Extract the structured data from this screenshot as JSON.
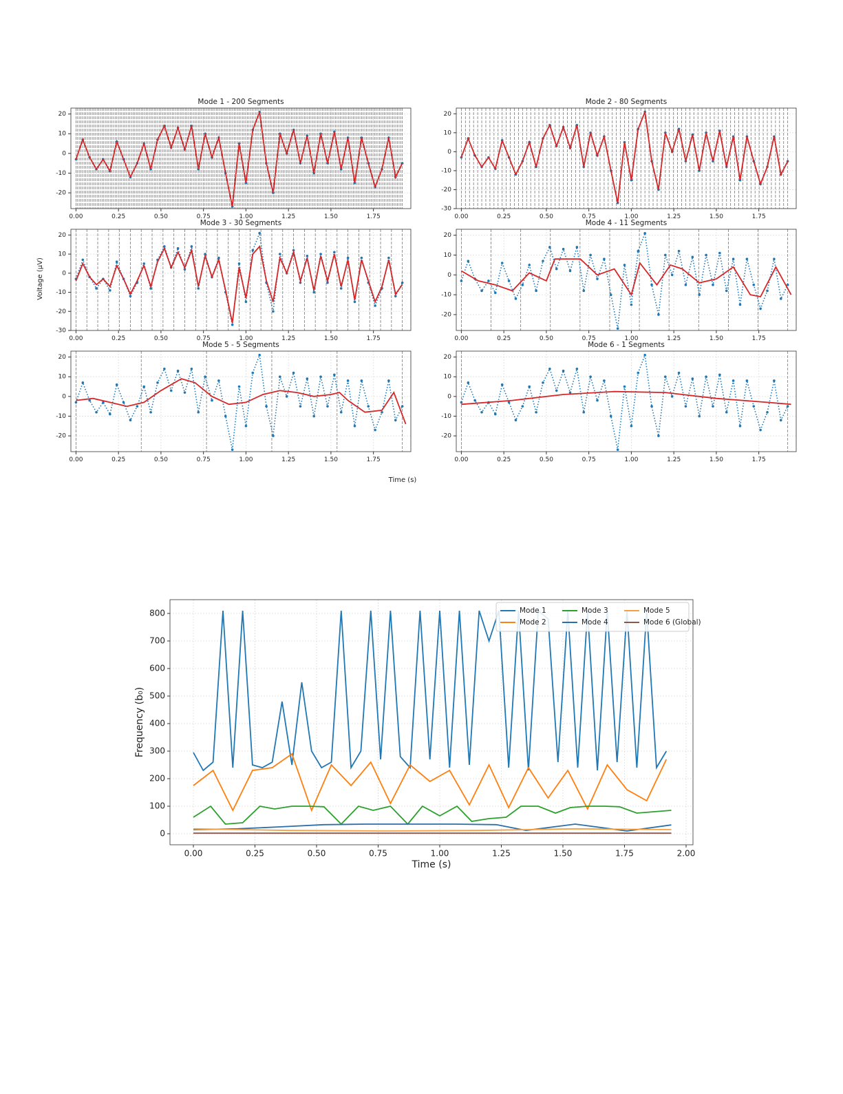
{
  "chart_data": [
    {
      "type": "segmented",
      "ylabel": "Voltage (μV)",
      "xlabel": "Time (s)",
      "x": [
        0,
        0.04,
        0.08,
        0.12,
        0.16,
        0.2,
        0.24,
        0.28,
        0.32,
        0.36,
        0.4,
        0.44,
        0.48,
        0.52,
        0.56,
        0.6,
        0.64,
        0.68,
        0.72,
        0.76,
        0.8,
        0.84,
        0.88,
        0.92,
        0.96,
        1.0,
        1.04,
        1.08,
        1.12,
        1.16,
        1.2,
        1.24,
        1.28,
        1.32,
        1.36,
        1.4,
        1.44,
        1.48,
        1.52,
        1.56,
        1.6,
        1.64,
        1.68,
        1.72,
        1.76,
        1.8,
        1.84,
        1.88,
        1.92
      ],
      "signal": [
        -3,
        7,
        -2,
        -8,
        -3,
        -9,
        6,
        -3,
        -12,
        -5,
        5,
        -8,
        7,
        14,
        3,
        13,
        2,
        14,
        -8,
        10,
        -2,
        8,
        -10,
        -27,
        5,
        -15,
        12,
        21,
        -5,
        -20,
        10,
        0,
        12,
        -5,
        9,
        -10,
        10,
        -5,
        11,
        -8,
        8,
        -15,
        8,
        -5,
        -17,
        -8,
        8,
        -12,
        -5
      ],
      "signal_color": "#1f77b4",
      "fit_color": "#d62728",
      "grid": true,
      "xlim": [
        -0.03,
        1.97
      ],
      "xticks": [
        {
          "value": 0,
          "label": "0.00"
        },
        {
          "value": 0.25,
          "label": "0.25"
        },
        {
          "value": 0.5,
          "label": "0.50"
        },
        {
          "value": 0.75,
          "label": "0.75"
        },
        {
          "value": 1,
          "label": "1.00"
        },
        {
          "value": 1.25,
          "label": "1.25"
        },
        {
          "value": 1.5,
          "label": "1.50"
        },
        {
          "value": 1.75,
          "label": "1.75"
        }
      ],
      "panels": [
        {
          "title": "Mode 1 - 200 Segments",
          "segments": 200,
          "ylim": [
            -28,
            23
          ],
          "yticks": [
            -20,
            -10,
            0,
            10,
            20
          ],
          "fit_x": [
            0,
            0.04,
            0.08,
            0.12,
            0.16,
            0.2,
            0.24,
            0.28,
            0.32,
            0.36,
            0.4,
            0.44,
            0.48,
            0.52,
            0.56,
            0.6,
            0.64,
            0.68,
            0.72,
            0.76,
            0.8,
            0.84,
            0.88,
            0.92,
            0.96,
            1.0,
            1.04,
            1.08,
            1.12,
            1.16,
            1.2,
            1.24,
            1.28,
            1.32,
            1.36,
            1.4,
            1.44,
            1.48,
            1.52,
            1.56,
            1.6,
            1.64,
            1.68,
            1.72,
            1.76,
            1.8,
            1.84,
            1.88,
            1.92
          ],
          "fit": [
            -3,
            7,
            -2,
            -8,
            -3,
            -9,
            6,
            -3,
            -12,
            -5,
            5,
            -8,
            7,
            14,
            3,
            13,
            2,
            14,
            -8,
            10,
            -2,
            8,
            -10,
            -27,
            5,
            -15,
            12,
            21,
            -5,
            -20,
            10,
            0,
            12,
            -5,
            9,
            -10,
            10,
            -5,
            11,
            -8,
            8,
            -15,
            8,
            -5,
            -17,
            -8,
            8,
            -12,
            -5
          ]
        },
        {
          "title": "Mode 2 - 80 Segments",
          "segments": 80,
          "ylim": [
            -30,
            23
          ],
          "yticks": [
            -30,
            -20,
            -10,
            0,
            10,
            20
          ],
          "fit_x": [
            0,
            0.04,
            0.08,
            0.12,
            0.16,
            0.2,
            0.24,
            0.28,
            0.32,
            0.36,
            0.4,
            0.44,
            0.48,
            0.52,
            0.56,
            0.6,
            0.64,
            0.68,
            0.72,
            0.76,
            0.8,
            0.84,
            0.88,
            0.92,
            0.96,
            1.0,
            1.04,
            1.08,
            1.12,
            1.16,
            1.2,
            1.24,
            1.28,
            1.32,
            1.36,
            1.4,
            1.44,
            1.48,
            1.52,
            1.56,
            1.6,
            1.64,
            1.68,
            1.72,
            1.76,
            1.8,
            1.84,
            1.88,
            1.92
          ],
          "fit": [
            -3,
            7,
            -2,
            -8,
            -3,
            -9,
            6,
            -3,
            -12,
            -5,
            5,
            -8,
            7,
            14,
            3,
            13,
            2,
            14,
            -8,
            10,
            -2,
            8,
            -10,
            -27,
            5,
            -15,
            12,
            21,
            -5,
            -20,
            10,
            0,
            12,
            -5,
            9,
            -10,
            10,
            -5,
            11,
            -8,
            8,
            -15,
            8,
            -5,
            -17,
            -8,
            8,
            -12,
            -5
          ]
        },
        {
          "title": "Mode 3 - 30 Segments",
          "segments": 30,
          "ylim": [
            -30,
            23
          ],
          "yticks": [
            -30,
            -20,
            -10,
            0,
            10,
            20
          ],
          "fit_x": [
            0,
            0.04,
            0.08,
            0.12,
            0.16,
            0.2,
            0.24,
            0.28,
            0.32,
            0.36,
            0.4,
            0.44,
            0.48,
            0.52,
            0.56,
            0.6,
            0.64,
            0.68,
            0.72,
            0.76,
            0.8,
            0.84,
            0.88,
            0.92,
            0.96,
            1.0,
            1.04,
            1.08,
            1.12,
            1.16,
            1.2,
            1.24,
            1.28,
            1.32,
            1.36,
            1.4,
            1.44,
            1.48,
            1.52,
            1.56,
            1.6,
            1.64,
            1.68,
            1.72,
            1.76,
            1.8,
            1.84,
            1.88,
            1.92
          ],
          "fit": [
            -4,
            5,
            -2,
            -6,
            -3,
            -7,
            4,
            -3,
            -11,
            -4,
            4,
            -7,
            6,
            13,
            3,
            11,
            3,
            12,
            -7,
            9,
            -2,
            7,
            -9,
            -26,
            3,
            -13,
            10,
            14,
            -4,
            -15,
            8,
            0,
            11,
            -4,
            8,
            -9,
            9,
            -4,
            10,
            -7,
            7,
            -14,
            7,
            -4,
            -15,
            -7,
            7,
            -11,
            -6
          ]
        },
        {
          "title": "Mode 4 - 11 Segments",
          "segments": 11,
          "ylim": [
            -28,
            23
          ],
          "yticks": [
            -20,
            -10,
            0,
            10,
            20
          ],
          "fit_x": [
            0,
            0.1,
            0.2,
            0.3,
            0.4,
            0.5,
            0.55,
            0.7,
            0.8,
            0.9,
            1.0,
            1.05,
            1.15,
            1.23,
            1.3,
            1.4,
            1.5,
            1.6,
            1.7,
            1.76,
            1.85,
            1.94
          ],
          "fit": [
            2,
            -3,
            -5,
            -8,
            1,
            -3,
            8,
            8,
            0,
            3,
            -10,
            6,
            -5,
            5,
            3,
            -4,
            -2,
            4,
            -10,
            -11,
            4,
            -10
          ]
        },
        {
          "title": "Mode 5 - 5 Segments",
          "segments": 5,
          "ylim": [
            -28,
            23
          ],
          "yticks": [
            -20,
            -10,
            0,
            10,
            20
          ],
          "fit_x": [
            0,
            0.1,
            0.2,
            0.3,
            0.4,
            0.5,
            0.62,
            0.7,
            0.8,
            0.9,
            1.0,
            1.1,
            1.2,
            1.3,
            1.4,
            1.5,
            1.55,
            1.6,
            1.7,
            1.8,
            1.87,
            1.94
          ],
          "fit": [
            -2,
            -1,
            -3,
            -5,
            -3,
            3,
            9,
            7,
            0,
            -4,
            -3,
            1,
            3,
            2,
            0,
            1,
            2,
            -2,
            -8,
            -7,
            2,
            -14
          ]
        },
        {
          "title": "Mode 6 - 1 Segments",
          "segments": 1,
          "ylim": [
            -28,
            23
          ],
          "yticks": [
            -20,
            -10,
            0,
            10,
            20
          ],
          "fit_x": [
            0,
            0.3,
            0.6,
            0.9,
            1.2,
            1.5,
            1.8,
            1.94
          ],
          "fit": [
            -4,
            -2,
            1,
            2.5,
            2,
            -1,
            -3,
            -4
          ]
        }
      ]
    },
    {
      "type": "line",
      "xlabel": "Time (s)",
      "ylabel": "Frequency (b₀)",
      "grid": true,
      "legend": "upper right",
      "xlim": [
        -0.095,
        2.028
      ],
      "ylim": [
        -40,
        850
      ],
      "xticks": [
        {
          "value": 0,
          "label": "0.00"
        },
        {
          "value": 0.25,
          "label": "0.25"
        },
        {
          "value": 0.5,
          "label": "0.50"
        },
        {
          "value": 0.75,
          "label": "0.75"
        },
        {
          "value": 1,
          "label": "1.00"
        },
        {
          "value": 1.25,
          "label": "1.25"
        },
        {
          "value": 1.5,
          "label": "1.50"
        },
        {
          "value": 1.75,
          "label": "1.75"
        },
        {
          "value": 2,
          "label": "2.00"
        }
      ],
      "yticks": [
        0,
        100,
        200,
        300,
        400,
        500,
        600,
        700,
        800
      ],
      "series": [
        {
          "name": "Mode 1",
          "color": "#1f77b4",
          "x": [
            0,
            0.04,
            0.08,
            0.12,
            0.16,
            0.2,
            0.24,
            0.28,
            0.32,
            0.36,
            0.4,
            0.44,
            0.48,
            0.52,
            0.56,
            0.6,
            0.64,
            0.68,
            0.72,
            0.76,
            0.8,
            0.84,
            0.88,
            0.92,
            0.96,
            1.0,
            1.04,
            1.08,
            1.12,
            1.16,
            1.2,
            1.24,
            1.28,
            1.32,
            1.36,
            1.4,
            1.44,
            1.48,
            1.52,
            1.56,
            1.6,
            1.64,
            1.68,
            1.72,
            1.76,
            1.8,
            1.84,
            1.88,
            1.92
          ],
          "values": [
            295,
            230,
            260,
            810,
            240,
            810,
            250,
            240,
            260,
            480,
            250,
            550,
            300,
            240,
            260,
            810,
            240,
            300,
            810,
            270,
            810,
            280,
            240,
            810,
            270,
            810,
            240,
            810,
            250,
            810,
            700,
            810,
            240,
            810,
            230,
            810,
            780,
            260,
            810,
            240,
            810,
            230,
            810,
            260,
            810,
            240,
            810,
            240,
            300
          ]
        },
        {
          "name": "Mode 2",
          "color": "#ff7f0e",
          "x": [
            0,
            0.08,
            0.16,
            0.24,
            0.32,
            0.4,
            0.48,
            0.56,
            0.64,
            0.72,
            0.8,
            0.88,
            0.96,
            1.04,
            1.12,
            1.2,
            1.28,
            1.36,
            1.44,
            1.52,
            1.6,
            1.68,
            1.76,
            1.84,
            1.92
          ],
          "values": [
            175,
            230,
            85,
            230,
            240,
            290,
            85,
            250,
            175,
            260,
            110,
            250,
            190,
            230,
            105,
            250,
            95,
            240,
            130,
            230,
            90,
            250,
            160,
            120,
            270
          ]
        },
        {
          "name": "Mode 3",
          "color": "#2ca02c",
          "x": [
            0,
            0.07,
            0.13,
            0.2,
            0.27,
            0.33,
            0.4,
            0.47,
            0.53,
            0.6,
            0.67,
            0.73,
            0.8,
            0.87,
            0.93,
            1.0,
            1.07,
            1.13,
            1.2,
            1.27,
            1.33,
            1.4,
            1.47,
            1.53,
            1.6,
            1.67,
            1.73,
            1.8,
            1.87,
            1.94
          ],
          "values": [
            60,
            100,
            35,
            40,
            100,
            90,
            100,
            100,
            98,
            35,
            100,
            85,
            100,
            35,
            100,
            65,
            100,
            45,
            55,
            60,
            100,
            100,
            75,
            95,
            100,
            100,
            98,
            75,
            80,
            85
          ]
        },
        {
          "name": "Mode 4",
          "color": "#2b6fa8",
          "x": [
            0,
            0.18,
            0.35,
            0.53,
            0.7,
            0.88,
            1.06,
            1.23,
            1.35,
            1.55,
            1.76,
            1.94
          ],
          "values": [
            15,
            18,
            25,
            33,
            35,
            35,
            35,
            33,
            12,
            35,
            10,
            32
          ]
        },
        {
          "name": "Mode 5",
          "color": "#f5a142",
          "x": [
            0,
            0.39,
            0.78,
            1.16,
            1.55,
            1.94
          ],
          "values": [
            18,
            12,
            10,
            12,
            18,
            15
          ]
        },
        {
          "name": "Mode 6 (Global)",
          "color": "#8c564b",
          "x": [
            0,
            1.94
          ],
          "values": [
            2,
            2
          ]
        }
      ]
    }
  ]
}
